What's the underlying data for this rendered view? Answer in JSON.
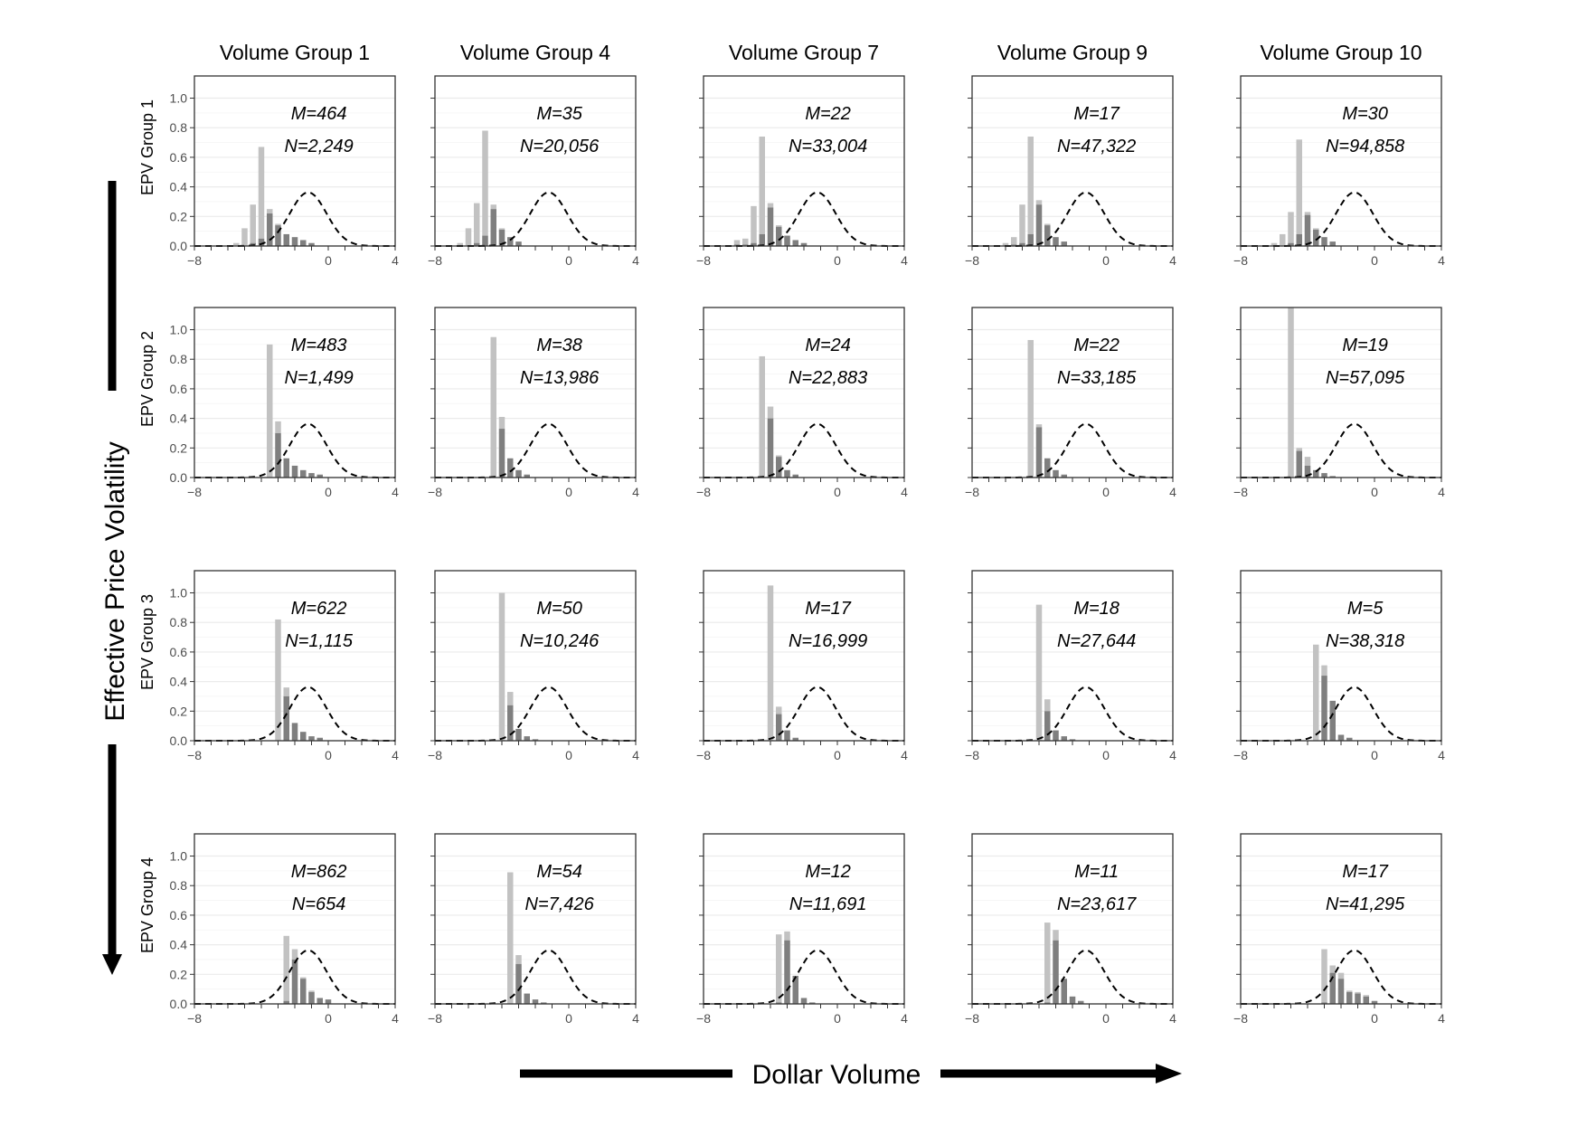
{
  "chart_data": {
    "type": "bar",
    "layout": "facet grid, 4 rows x 5 columns",
    "column_titles": [
      "Volume Group 1",
      "Volume Group 4",
      "Volume Group 7",
      "Volume Group 9",
      "Volume Group 10"
    ],
    "row_titles": [
      "EPV Group 1",
      "EPV Group 2",
      "EPV Group 3",
      "EPV Group 4"
    ],
    "xlabel": "Dollar Volume",
    "ylabel": "Effective Price Volatility",
    "xlim": [
      -8,
      4
    ],
    "ylim": [
      0,
      1.15
    ],
    "x_ticks": [
      "-8",
      "0",
      "4"
    ],
    "y_ticks": [
      "0.0",
      "0.2",
      "0.4",
      "0.6",
      "0.8",
      "1.0"
    ],
    "grid": true,
    "bar_colors": {
      "light": "#c2c2c2",
      "dark": "#7f7f7f"
    },
    "reference_curve": {
      "style": "dashed",
      "shape": "normal density",
      "mean": -1.2,
      "sd": 1.1
    },
    "panels": [
      [
        {
          "row": 1,
          "col": 1,
          "M": "M=464",
          "N": "N=2,249",
          "bars": [
            {
              "x": -5.5,
              "total": 0.02,
              "dark": 0
            },
            {
              "x": -5.0,
              "total": 0.12,
              "dark": 0
            },
            {
              "x": -4.5,
              "total": 0.28,
              "dark": 0.02
            },
            {
              "x": -4.0,
              "total": 0.67,
              "dark": 0.05
            },
            {
              "x": -3.5,
              "total": 0.25,
              "dark": 0.22
            },
            {
              "x": -3.0,
              "total": 0.15,
              "dark": 0.14
            },
            {
              "x": -2.5,
              "total": 0.08,
              "dark": 0.08
            },
            {
              "x": -2.0,
              "total": 0.06,
              "dark": 0.06
            },
            {
              "x": -1.5,
              "total": 0.04,
              "dark": 0.04
            },
            {
              "x": -1.0,
              "total": 0.02,
              "dark": 0.02
            }
          ]
        },
        {
          "row": 1,
          "col": 2,
          "M": "M=35",
          "N": "N=20,056",
          "bars": [
            {
              "x": -6.5,
              "total": 0.02,
              "dark": 0
            },
            {
              "x": -6.0,
              "total": 0.12,
              "dark": 0
            },
            {
              "x": -5.5,
              "total": 0.29,
              "dark": 0.02
            },
            {
              "x": -5.0,
              "total": 0.78,
              "dark": 0.07
            },
            {
              "x": -4.5,
              "total": 0.28,
              "dark": 0.25
            },
            {
              "x": -4.0,
              "total": 0.12,
              "dark": 0.11
            },
            {
              "x": -3.5,
              "total": 0.06,
              "dark": 0.06
            },
            {
              "x": -3.0,
              "total": 0.03,
              "dark": 0.03
            }
          ]
        },
        {
          "row": 1,
          "col": 3,
          "M": "M=22",
          "N": "N=33,004",
          "bars": [
            {
              "x": -6.0,
              "total": 0.04,
              "dark": 0.01
            },
            {
              "x": -5.5,
              "total": 0.05,
              "dark": 0.01
            },
            {
              "x": -5.0,
              "total": 0.27,
              "dark": 0.02
            },
            {
              "x": -4.5,
              "total": 0.74,
              "dark": 0.08
            },
            {
              "x": -4.0,
              "total": 0.29,
              "dark": 0.26
            },
            {
              "x": -3.5,
              "total": 0.14,
              "dark": 0.13
            },
            {
              "x": -3.0,
              "total": 0.07,
              "dark": 0.07
            },
            {
              "x": -2.5,
              "total": 0.04,
              "dark": 0.04
            },
            {
              "x": -2.0,
              "total": 0.02,
              "dark": 0.02
            }
          ]
        },
        {
          "row": 1,
          "col": 4,
          "M": "M=17",
          "N": "N=47,322",
          "bars": [
            {
              "x": -6.0,
              "total": 0.02,
              "dark": 0
            },
            {
              "x": -5.5,
              "total": 0.06,
              "dark": 0.01
            },
            {
              "x": -5.0,
              "total": 0.28,
              "dark": 0.02
            },
            {
              "x": -4.5,
              "total": 0.74,
              "dark": 0.08
            },
            {
              "x": -4.0,
              "total": 0.31,
              "dark": 0.28
            },
            {
              "x": -3.5,
              "total": 0.15,
              "dark": 0.14
            },
            {
              "x": -3.0,
              "total": 0.06,
              "dark": 0.06
            },
            {
              "x": -2.5,
              "total": 0.03,
              "dark": 0.03
            }
          ]
        },
        {
          "row": 1,
          "col": 5,
          "M": "M=30",
          "N": "N=94,858",
          "bars": [
            {
              "x": -6.0,
              "total": 0.02,
              "dark": 0
            },
            {
              "x": -5.5,
              "total": 0.08,
              "dark": 0
            },
            {
              "x": -5.0,
              "total": 0.23,
              "dark": 0.02
            },
            {
              "x": -4.5,
              "total": 0.72,
              "dark": 0.08
            },
            {
              "x": -4.0,
              "total": 0.23,
              "dark": 0.21
            },
            {
              "x": -3.5,
              "total": 0.12,
              "dark": 0.11
            },
            {
              "x": -3.0,
              "total": 0.06,
              "dark": 0.06
            },
            {
              "x": -2.5,
              "total": 0.03,
              "dark": 0.03
            }
          ]
        }
      ],
      [
        {
          "row": 2,
          "col": 1,
          "M": "M=483",
          "N": "N=1,499",
          "bars": [
            {
              "x": -3.5,
              "total": 0.9,
              "dark": 0
            },
            {
              "x": -3.0,
              "total": 0.38,
              "dark": 0.3
            },
            {
              "x": -2.5,
              "total": 0.13,
              "dark": 0.13
            },
            {
              "x": -2.0,
              "total": 0.08,
              "dark": 0.08
            },
            {
              "x": -1.5,
              "total": 0.05,
              "dark": 0.05
            },
            {
              "x": -1.0,
              "total": 0.03,
              "dark": 0.03
            },
            {
              "x": -0.5,
              "total": 0.02,
              "dark": 0.02
            }
          ]
        },
        {
          "row": 2,
          "col": 2,
          "M": "M=38",
          "N": "N=13,986",
          "bars": [
            {
              "x": -4.5,
              "total": 0.95,
              "dark": 0
            },
            {
              "x": -4.0,
              "total": 0.41,
              "dark": 0.33
            },
            {
              "x": -3.5,
              "total": 0.13,
              "dark": 0.13
            },
            {
              "x": -3.0,
              "total": 0.05,
              "dark": 0.05
            },
            {
              "x": -2.5,
              "total": 0.02,
              "dark": 0.02
            }
          ]
        },
        {
          "row": 2,
          "col": 3,
          "M": "M=24",
          "N": "N=22,883",
          "bars": [
            {
              "x": -4.5,
              "total": 0.82,
              "dark": 0
            },
            {
              "x": -4.0,
              "total": 0.48,
              "dark": 0.4
            },
            {
              "x": -3.5,
              "total": 0.15,
              "dark": 0.14
            },
            {
              "x": -3.0,
              "total": 0.05,
              "dark": 0.05
            },
            {
              "x": -2.5,
              "total": 0.02,
              "dark": 0.02
            }
          ]
        },
        {
          "row": 2,
          "col": 4,
          "M": "M=22",
          "N": "N=33,185",
          "bars": [
            {
              "x": -4.5,
              "total": 0.93,
              "dark": 0
            },
            {
              "x": -4.0,
              "total": 0.36,
              "dark": 0.34
            },
            {
              "x": -3.5,
              "total": 0.13,
              "dark": 0.13
            },
            {
              "x": -3.0,
              "total": 0.05,
              "dark": 0.05
            },
            {
              "x": -2.5,
              "total": 0.02,
              "dark": 0.02
            }
          ]
        },
        {
          "row": 2,
          "col": 5,
          "M": "M=19",
          "N": "N=57,095",
          "bars": [
            {
              "x": -5.0,
              "total": 1.15,
              "dark": 0
            },
            {
              "x": -4.5,
              "total": 0.2,
              "dark": 0.18
            },
            {
              "x": -4.0,
              "total": 0.14,
              "dark": 0.08
            },
            {
              "x": -3.5,
              "total": 0.05,
              "dark": 0.05
            },
            {
              "x": -3.0,
              "total": 0.03,
              "dark": 0.03
            },
            {
              "x": -2.5,
              "total": 0.01,
              "dark": 0.01
            }
          ]
        }
      ],
      [
        {
          "row": 3,
          "col": 1,
          "M": "M=622",
          "N": "N=1,115",
          "bars": [
            {
              "x": -3.0,
              "total": 0.82,
              "dark": 0
            },
            {
              "x": -2.5,
              "total": 0.36,
              "dark": 0.3
            },
            {
              "x": -2.0,
              "total": 0.12,
              "dark": 0.12
            },
            {
              "x": -1.5,
              "total": 0.06,
              "dark": 0.06
            },
            {
              "x": -1.0,
              "total": 0.03,
              "dark": 0.03
            },
            {
              "x": -0.5,
              "total": 0.02,
              "dark": 0.02
            }
          ]
        },
        {
          "row": 3,
          "col": 2,
          "M": "M=50",
          "N": "N=10,246",
          "bars": [
            {
              "x": -4.0,
              "total": 1.0,
              "dark": 0
            },
            {
              "x": -3.5,
              "total": 0.33,
              "dark": 0.24
            },
            {
              "x": -3.0,
              "total": 0.08,
              "dark": 0.08
            },
            {
              "x": -2.5,
              "total": 0.03,
              "dark": 0.03
            },
            {
              "x": -2.0,
              "total": 0.01,
              "dark": 0.01
            }
          ]
        },
        {
          "row": 3,
          "col": 3,
          "M": "M=17",
          "N": "N=16,999",
          "bars": [
            {
              "x": -4.0,
              "total": 1.05,
              "dark": 0
            },
            {
              "x": -3.5,
              "total": 0.23,
              "dark": 0.18
            },
            {
              "x": -3.0,
              "total": 0.07,
              "dark": 0.07
            },
            {
              "x": -2.5,
              "total": 0.02,
              "dark": 0.02
            }
          ]
        },
        {
          "row": 3,
          "col": 4,
          "M": "M=18",
          "N": "N=27,644",
          "bars": [
            {
              "x": -4.0,
              "total": 0.92,
              "dark": 0
            },
            {
              "x": -3.5,
              "total": 0.28,
              "dark": 0.2
            },
            {
              "x": -3.0,
              "total": 0.07,
              "dark": 0.07
            },
            {
              "x": -2.5,
              "total": 0.03,
              "dark": 0.03
            },
            {
              "x": -2.0,
              "total": 0.01,
              "dark": 0.01
            }
          ]
        },
        {
          "row": 3,
          "col": 5,
          "M": "M=5",
          "N": "N=38,318",
          "bars": [
            {
              "x": -3.5,
              "total": 0.65,
              "dark": 0
            },
            {
              "x": -3.0,
              "total": 0.51,
              "dark": 0.44
            },
            {
              "x": -2.5,
              "total": 0.27,
              "dark": 0.27
            },
            {
              "x": -2.0,
              "total": 0.04,
              "dark": 0.04
            },
            {
              "x": -1.5,
              "total": 0.02,
              "dark": 0.02
            }
          ]
        }
      ],
      [
        {
          "row": 4,
          "col": 1,
          "M": "M=862",
          "N": "N=654",
          "bars": [
            {
              "x": -2.5,
              "total": 0.46,
              "dark": 0.02
            },
            {
              "x": -2.0,
              "total": 0.37,
              "dark": 0.3
            },
            {
              "x": -1.5,
              "total": 0.18,
              "dark": 0.17
            },
            {
              "x": -1.0,
              "total": 0.09,
              "dark": 0.08
            },
            {
              "x": -0.5,
              "total": 0.04,
              "dark": 0.04
            },
            {
              "x": 0.0,
              "total": 0.03,
              "dark": 0.03
            }
          ]
        },
        {
          "row": 4,
          "col": 2,
          "M": "M=54",
          "N": "N=7,426",
          "bars": [
            {
              "x": -3.5,
              "total": 0.89,
              "dark": 0
            },
            {
              "x": -3.0,
              "total": 0.33,
              "dark": 0.27
            },
            {
              "x": -2.5,
              "total": 0.07,
              "dark": 0.07
            },
            {
              "x": -2.0,
              "total": 0.03,
              "dark": 0.03
            },
            {
              "x": -1.5,
              "total": 0.01,
              "dark": 0.01
            }
          ]
        },
        {
          "row": 4,
          "col": 3,
          "M": "M=12",
          "N": "N=11,691",
          "bars": [
            {
              "x": -3.5,
              "total": 0.47,
              "dark": 0.01
            },
            {
              "x": -3.0,
              "total": 0.49,
              "dark": 0.43
            },
            {
              "x": -2.5,
              "total": 0.19,
              "dark": 0.19
            },
            {
              "x": -2.0,
              "total": 0.04,
              "dark": 0.04
            },
            {
              "x": -1.5,
              "total": 0.01,
              "dark": 0.01
            }
          ]
        },
        {
          "row": 4,
          "col": 4,
          "M": "M=11",
          "N": "N=23,617",
          "bars": [
            {
              "x": -3.5,
              "total": 0.55,
              "dark": 0.01
            },
            {
              "x": -3.0,
              "total": 0.5,
              "dark": 0.43
            },
            {
              "x": -2.5,
              "total": 0.17,
              "dark": 0.17
            },
            {
              "x": -2.0,
              "total": 0.05,
              "dark": 0.05
            },
            {
              "x": -1.5,
              "total": 0.02,
              "dark": 0.02
            }
          ]
        },
        {
          "row": 4,
          "col": 5,
          "M": "M=17",
          "N": "N=41,295",
          "bars": [
            {
              "x": -3.0,
              "total": 0.37,
              "dark": 0.01
            },
            {
              "x": -2.5,
              "total": 0.26,
              "dark": 0.21
            },
            {
              "x": -2.0,
              "total": 0.21,
              "dark": 0.17
            },
            {
              "x": -1.5,
              "total": 0.09,
              "dark": 0.08
            },
            {
              "x": -1.0,
              "total": 0.08,
              "dark": 0.07
            },
            {
              "x": -0.5,
              "total": 0.06,
              "dark": 0.05
            },
            {
              "x": 0.0,
              "total": 0.02,
              "dark": 0.02
            }
          ]
        }
      ]
    ]
  }
}
